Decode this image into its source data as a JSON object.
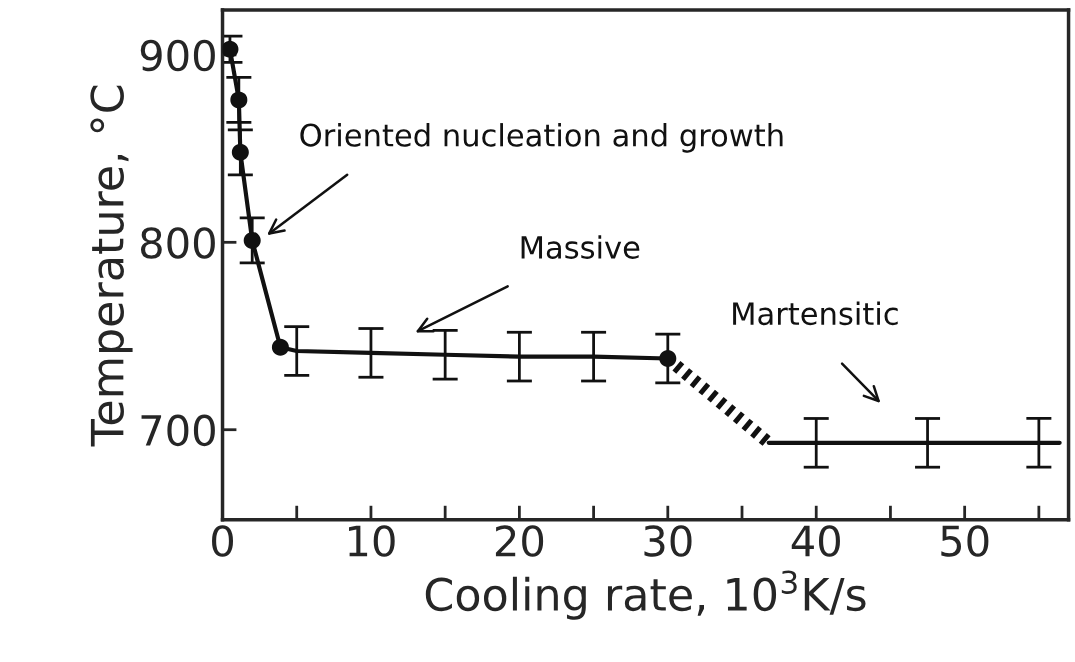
{
  "chart_data": {
    "type": "line",
    "xlabel": "Cooling rate, 10$^{3}$K/s",
    "ylabel": "Temperature, °C",
    "xlim": [
      0,
      57
    ],
    "ylim": [
      652,
      924
    ],
    "xticks": [
      0,
      {
        "value": 5,
        "label": null
      },
      10,
      {
        "value": 15,
        "label": null
      },
      20,
      {
        "value": 25,
        "label": null
      },
      30,
      {
        "value": 35,
        "label": null
      },
      40,
      {
        "value": 45,
        "label": null
      },
      50,
      {
        "value": 55,
        "label": null
      }
    ],
    "yticks": [
      700,
      800,
      900
    ],
    "grid": false,
    "legend": false,
    "series": [
      {
        "color": "#111111",
        "marker": "none",
        "x": [
          0.5,
          1.1,
          1.2,
          2,
          3.9,
          5,
          10,
          15,
          20,
          25,
          30
        ],
        "values": [
          903,
          876,
          848,
          801,
          744,
          742,
          741,
          740,
          739,
          739,
          738
        ],
        "errors": [
          7,
          12,
          12,
          12,
          null,
          13,
          13,
          13,
          13,
          13,
          13
        ]
      },
      {
        "type": "line",
        "color": "#111111",
        "marker": "none",
        "line_style": "dashed",
        "x": [
          30,
          36.8
        ],
        "values": [
          738,
          693
        ]
      },
      {
        "color": "#111111",
        "marker": "none",
        "x": [
          36.8,
          40,
          47.5,
          55,
          56.4
        ],
        "values": [
          693,
          693,
          693,
          693,
          693
        ],
        "errors": [
          null,
          13,
          13,
          13,
          null
        ]
      },
      {
        "type": "scatter",
        "color": "#111111",
        "marker": "circle",
        "x": [
          0.5,
          1.1,
          1.2,
          2,
          3.9,
          30
        ],
        "values": [
          903,
          876,
          848,
          801,
          744,
          738
        ]
      }
    ],
    "annotations": [
      "Oriented nucleation and growth",
      "Massive",
      "Martensitic"
    ]
  }
}
